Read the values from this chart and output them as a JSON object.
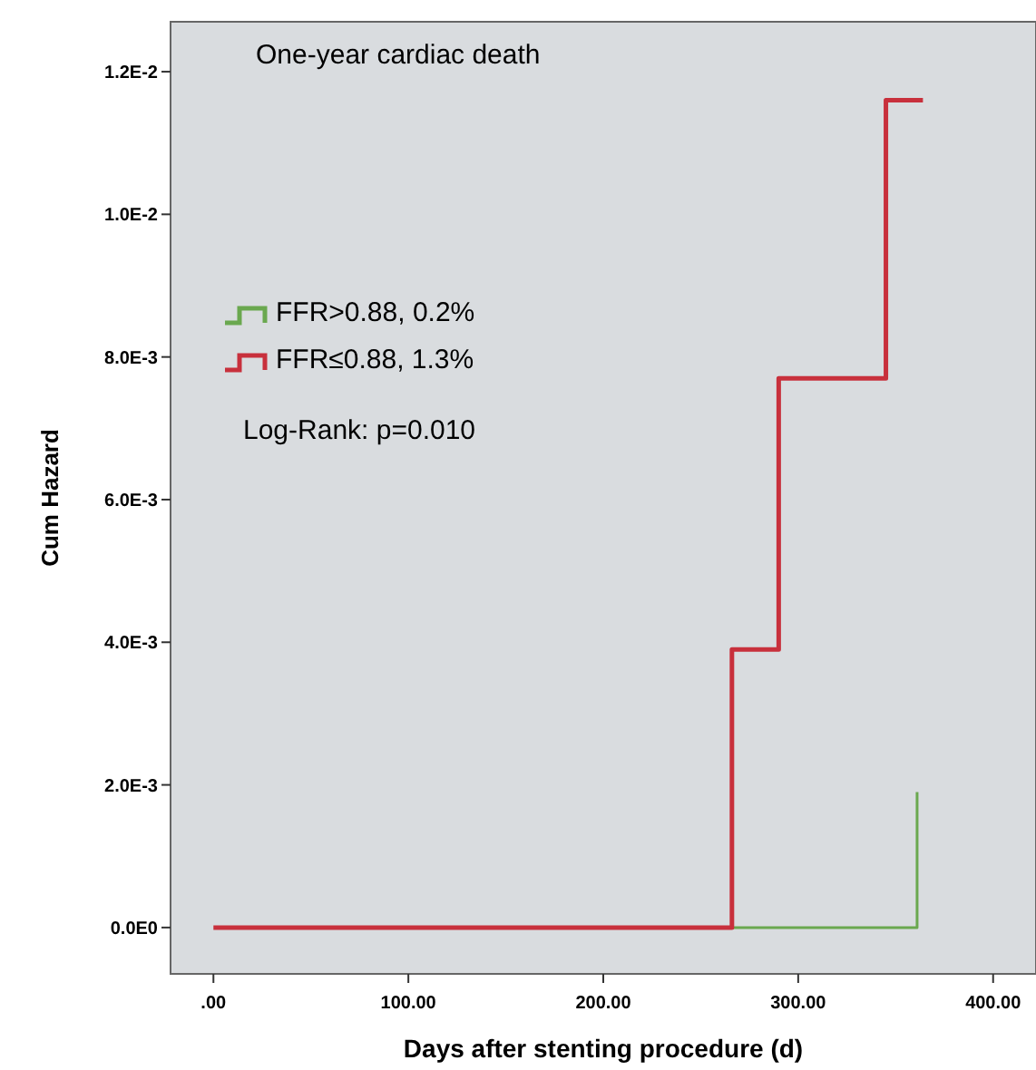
{
  "chart_data": {
    "type": "step",
    "title": "One-year cardiac death",
    "xlabel": "Days after stenting procedure (d)",
    "ylabel": "Cum Hazard",
    "series": [
      {
        "name": "FFR>0.88, 0.2%",
        "color": "#6aa84f",
        "x": [
          266,
          361,
          361
        ],
        "values": [
          0,
          0,
          0.0019
        ]
      },
      {
        "name": "FFR≤0.88, 1.3%",
        "color": "#c8303c",
        "x": [
          0,
          266,
          290,
          345,
          364
        ],
        "values": [
          0,
          0.0039,
          0.0077,
          0.0116,
          0.0116
        ]
      }
    ],
    "annotations": [
      "Log-Rank: p=0.010"
    ],
    "xlim": [
      -22,
      422
    ],
    "xticks": [
      {
        "value": 0,
        "label": ".00"
      },
      {
        "value": 100,
        "label": "100.00"
      },
      {
        "value": 200,
        "label": "200.00"
      },
      {
        "value": 300,
        "label": "300.00"
      },
      {
        "value": 400,
        "label": "400.00"
      }
    ],
    "ylim": [
      -0.00065,
      0.0127
    ],
    "yticks": [
      {
        "value": 0,
        "label": "0.0E0"
      },
      {
        "value": 0.002,
        "label": "2.0E-3"
      },
      {
        "value": 0.004,
        "label": "4.0E-3"
      },
      {
        "value": 0.006,
        "label": "6.0E-3"
      },
      {
        "value": 0.008,
        "label": "8.0E-3"
      },
      {
        "value": 0.01,
        "label": "1.0E-2"
      },
      {
        "value": 0.012,
        "label": "1.2E-2"
      }
    ],
    "legend": "top left",
    "grid": false
  }
}
